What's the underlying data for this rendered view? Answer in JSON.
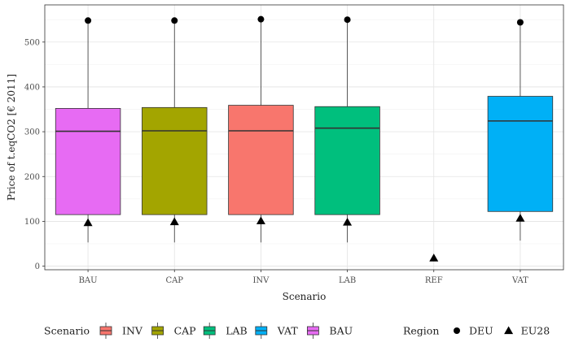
{
  "chart_data": {
    "type": "boxplot",
    "xlabel": "Scenario",
    "ylabel": "Price of t.eqCO2 [€ 2011]",
    "categories": [
      "BAU",
      "CAP",
      "INV",
      "LAB",
      "REF",
      "VAT"
    ],
    "ylim": [
      -8,
      583
    ],
    "yticks": [
      0,
      100,
      200,
      300,
      400,
      500
    ],
    "grid": true,
    "boxes": [
      {
        "scenario": "BAU",
        "q1": 115,
        "median": 301,
        "q3": 352,
        "whisker_low": 53,
        "whisker_high": 548,
        "color": "#E76BF3"
      },
      {
        "scenario": "CAP",
        "q1": 115,
        "median": 302,
        "q3": 354,
        "whisker_low": 53,
        "whisker_high": 548,
        "color": "#A3A500"
      },
      {
        "scenario": "INV",
        "q1": 115,
        "median": 302,
        "q3": 359,
        "whisker_low": 53,
        "whisker_high": 551,
        "color": "#F8766D"
      },
      {
        "scenario": "LAB",
        "q1": 115,
        "median": 308,
        "q3": 356,
        "whisker_low": 53,
        "whisker_high": 550,
        "color": "#00BF7D"
      },
      {
        "scenario": "VAT",
        "q1": 122,
        "median": 324,
        "q3": 379,
        "whisker_low": 57,
        "whisker_high": 544,
        "color": "#00B0F6"
      }
    ],
    "points": [
      {
        "scenario": "BAU",
        "region": "DEU",
        "y": 548
      },
      {
        "scenario": "CAP",
        "region": "DEU",
        "y": 548
      },
      {
        "scenario": "INV",
        "region": "DEU",
        "y": 551
      },
      {
        "scenario": "LAB",
        "region": "DEU",
        "y": 550
      },
      {
        "scenario": "VAT",
        "region": "DEU",
        "y": 544
      },
      {
        "scenario": "BAU",
        "region": "EU28",
        "y": 97
      },
      {
        "scenario": "CAP",
        "region": "EU28",
        "y": 99
      },
      {
        "scenario": "INV",
        "region": "EU28",
        "y": 101
      },
      {
        "scenario": "LAB",
        "region": "EU28",
        "y": 98
      },
      {
        "scenario": "REF",
        "region": "EU28",
        "y": 18
      },
      {
        "scenario": "VAT",
        "region": "EU28",
        "y": 107
      }
    ],
    "legend": {
      "position": "bottom",
      "scenario_title": "Scenario",
      "scenario_entries": [
        {
          "label": "INV",
          "color": "#F8766D"
        },
        {
          "label": "CAP",
          "color": "#A3A500"
        },
        {
          "label": "LAB",
          "color": "#00BF7D"
        },
        {
          "label": "VAT",
          "color": "#00B0F6"
        },
        {
          "label": "BAU",
          "color": "#E76BF3"
        }
      ],
      "region_title": "Region",
      "region_entries": [
        {
          "label": "DEU",
          "shape": "circle"
        },
        {
          "label": "EU28",
          "shape": "triangle"
        }
      ]
    }
  }
}
